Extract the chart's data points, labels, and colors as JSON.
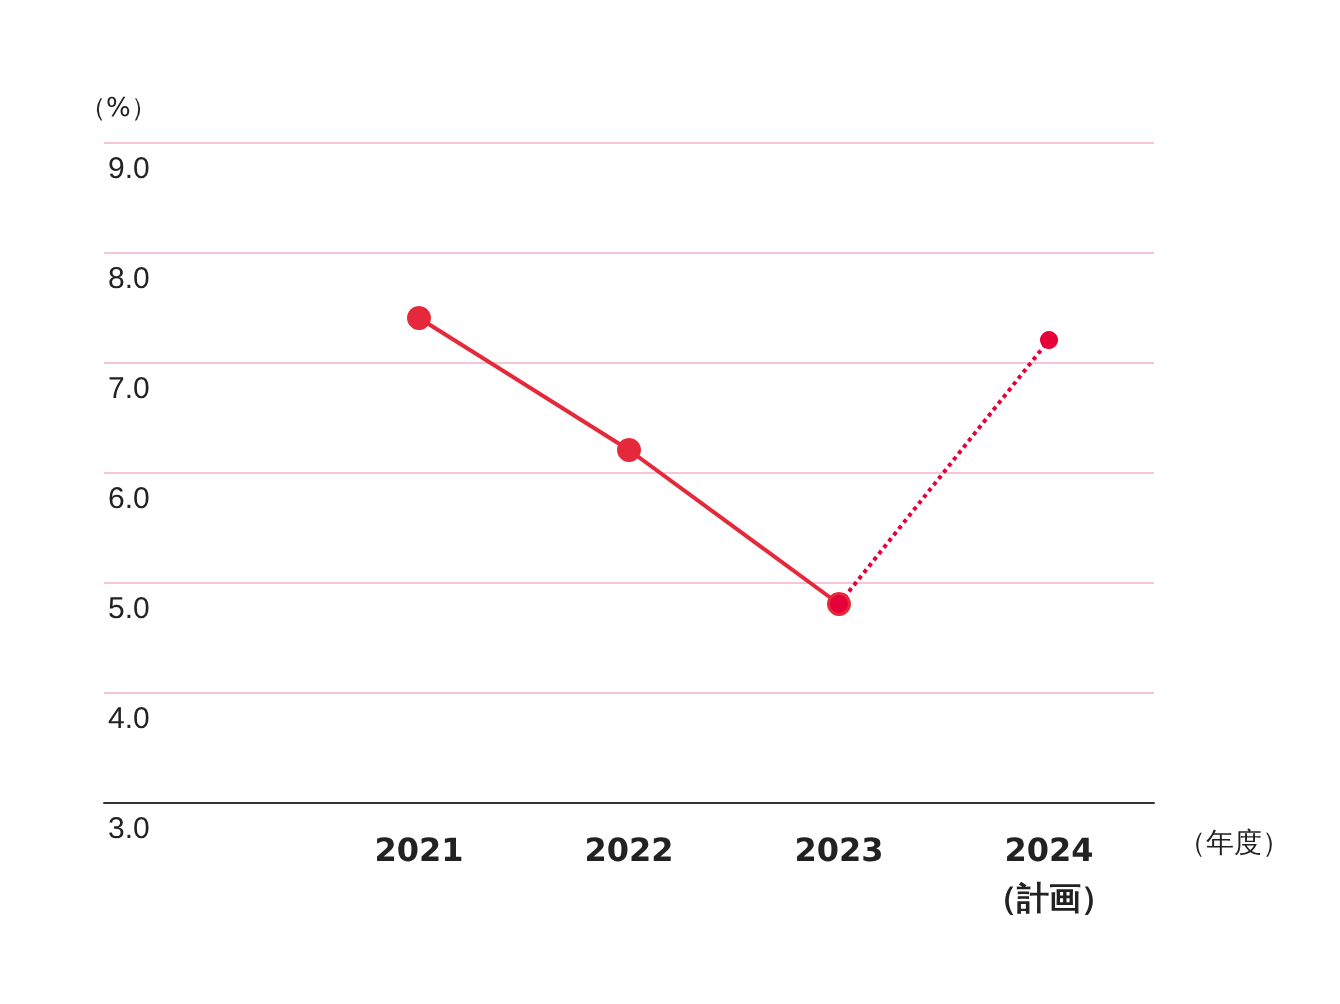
{
  "chart_data": {
    "type": "line",
    "ylabel": "（%）",
    "xlabel": "（年度）",
    "categories": [
      null,
      "2021",
      "2022",
      "2023",
      "2024\n（計画）"
    ],
    "series": [
      {
        "color": "#e5283a",
        "values": [
          null,
          7.4,
          6.2,
          4.8,
          null
        ],
        "line_style": "solid"
      },
      {
        "color": "#e50039",
        "values": [
          null,
          null,
          null,
          4.8,
          7.2
        ],
        "line_style": "dotted"
      }
    ],
    "ylim": [
      3,
      9
    ],
    "yticks": [
      {
        "value": 3,
        "label": "3.0"
      },
      {
        "value": 4,
        "label": "4.0"
      },
      {
        "value": 5,
        "label": "5.0"
      },
      {
        "value": 6,
        "label": "6.0"
      },
      {
        "value": 7,
        "label": "7.0"
      },
      {
        "value": 8,
        "label": "8.0"
      },
      {
        "value": 9,
        "label": "9.0"
      }
    ],
    "grid": "y",
    "marker": "circle"
  }
}
